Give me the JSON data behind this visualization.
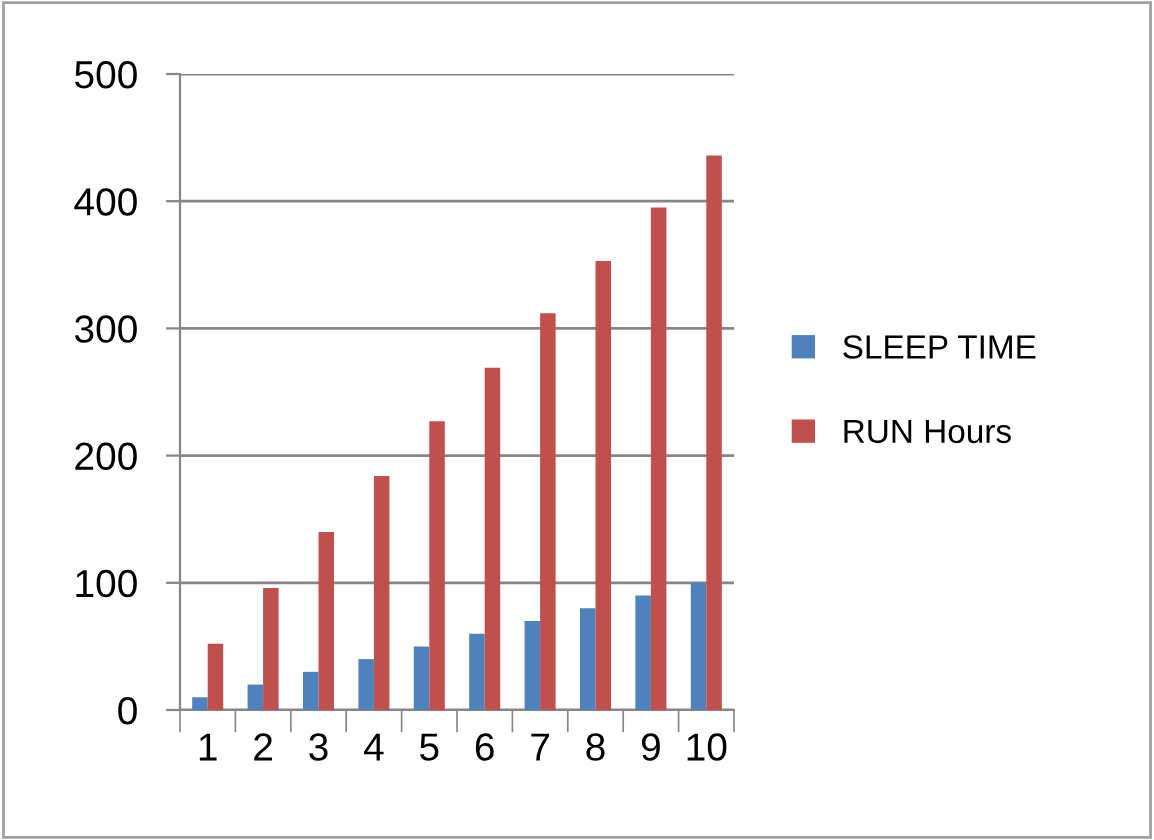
{
  "chart_data": {
    "type": "bar",
    "categories": [
      "1",
      "2",
      "3",
      "4",
      "5",
      "6",
      "7",
      "8",
      "9",
      "10"
    ],
    "series": [
      {
        "name": "SLEEP TIME",
        "color": "#4f81bd",
        "values": [
          10,
          20,
          30,
          40,
          50,
          60,
          70,
          80,
          90,
          100
        ]
      },
      {
        "name": "RUN Hours",
        "color": "#c0504d",
        "values": [
          52,
          96,
          140,
          184,
          227,
          269,
          312,
          353,
          395,
          436
        ]
      }
    ],
    "ylim": [
      0,
      500
    ],
    "yticks": [
      0,
      100,
      200,
      300,
      400,
      500
    ],
    "grid": "y",
    "legend": "right"
  }
}
